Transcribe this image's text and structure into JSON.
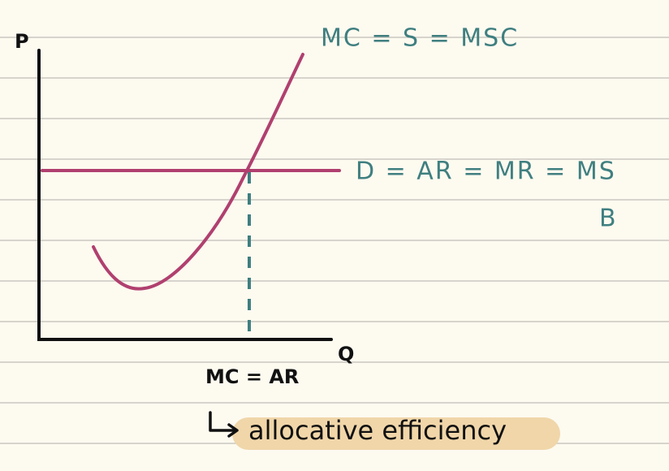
{
  "axes": {
    "y_label": "P",
    "x_label": "Q"
  },
  "curves": {
    "mc_label": "MC = S = MSC",
    "demand_label": "D = AR = MR = MS",
    "note": "B"
  },
  "equilibrium": {
    "label": "MC = AR",
    "result": "allocative efficiency"
  }
}
